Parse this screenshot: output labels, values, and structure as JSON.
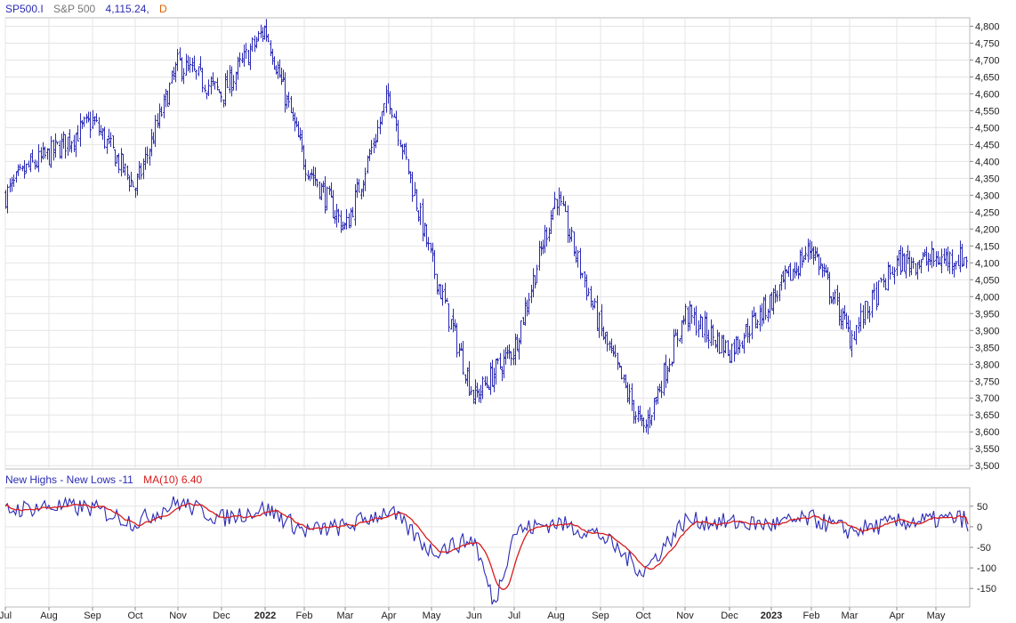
{
  "header": {
    "symbol": "SP500.I",
    "name": "S&P 500",
    "last": "4,115.24,",
    "period": "D"
  },
  "indicator": {
    "label": "New Highs - New Lows -11",
    "ma_label": "MA(10) 6.40"
  },
  "colors": {
    "price": "#2b2bb5",
    "indicator": "#2b2bb5",
    "ma": "#d81b1b",
    "grid": "#e4e4e4",
    "frame": "#b8b8b8",
    "header_name": "#777777",
    "header_period": "#e06000"
  },
  "chart_data": [
    {
      "type": "ohlc",
      "title": "SP500.I",
      "subtitle": "S&P 500",
      "x_tick_labels": [
        "Jul",
        "Aug",
        "Sep",
        "Oct",
        "Nov",
        "Dec",
        "2022",
        "Feb",
        "Mar",
        "Apr",
        "May",
        "Jun",
        "Jul",
        "Aug",
        "Sep",
        "Oct",
        "Nov",
        "Dec",
        "2023",
        "Feb",
        "Mar",
        "Apr",
        "May"
      ],
      "x_major_ticks": [
        "2022",
        "2023"
      ],
      "y_ticks": [
        "3,500",
        "3,550",
        "3,600",
        "3,650",
        "3,700",
        "3,750",
        "3,800",
        "3,850",
        "3,900",
        "3,950",
        "4,000",
        "4,050",
        "4,100",
        "4,150",
        "4,200",
        "4,250",
        "4,300",
        "4,350",
        "4,400",
        "4,450",
        "4,500",
        "4,550",
        "4,600",
        "4,650",
        "4,700",
        "4,750",
        "4,800"
      ],
      "y_major_ticks": [
        "3,600",
        "3,800",
        "4,000",
        "4,200",
        "4,400",
        "4,600",
        "4,800"
      ],
      "ylim": [
        3490,
        4825
      ],
      "last_close": 4115.24,
      "grid": true,
      "keypoints": [
        {
          "month": "Jul 2021",
          "close": 4300
        },
        {
          "month": "mid Jul 2021",
          "close": 4380
        },
        {
          "month": "Aug 2021",
          "close": 4420
        },
        {
          "month": "Sep 2021",
          "close": 4520
        },
        {
          "month": "Oct 2021",
          "close": 4320
        },
        {
          "month": "Nov 2021",
          "close": 4690
        },
        {
          "month": "Dec 2021",
          "close": 4600
        },
        {
          "month": "Jan 2022",
          "close": 4795
        },
        {
          "month": "Feb 2022",
          "close": 4400
        },
        {
          "month": "Mar 2022",
          "close": 4200
        },
        {
          "month": "Apr 2022",
          "close": 4600
        },
        {
          "month": "May 2022",
          "close": 4100
        },
        {
          "month": "Jun 2022",
          "close": 3700
        },
        {
          "month": "Jul 2022",
          "close": 3850
        },
        {
          "month": "Aug 2022",
          "close": 4300
        },
        {
          "month": "Sep 2022",
          "close": 3900
        },
        {
          "month": "Oct 2022",
          "close": 3600
        },
        {
          "month": "Nov 2022",
          "close": 3950
        },
        {
          "month": "Dec 2022",
          "close": 3840
        },
        {
          "month": "Jan 2023",
          "close": 3990
        },
        {
          "month": "Feb 2023",
          "close": 4150
        },
        {
          "month": "Mar 2023",
          "close": 3880
        },
        {
          "month": "Apr 2023",
          "close": 4100
        },
        {
          "month": "May 2023",
          "close": 4115
        }
      ]
    },
    {
      "type": "line",
      "title": "New Highs - New Lows",
      "series": [
        {
          "name": "New Highs - New Lows",
          "last": -11
        },
        {
          "name": "MA(10)",
          "last": 6.4
        }
      ],
      "y_ticks": [
        "50",
        "0",
        "-50",
        "-100",
        "-150"
      ],
      "ylim": [
        -195,
        95
      ],
      "grid": true,
      "keypoints": [
        {
          "month": "Jul 2021",
          "value": 40
        },
        {
          "month": "Aug 2021",
          "value": 50
        },
        {
          "month": "Sep 2021",
          "value": 45
        },
        {
          "month": "Oct 2021",
          "value": 10
        },
        {
          "month": "Nov 2021",
          "value": 60
        },
        {
          "month": "Dec 2021",
          "value": 20
        },
        {
          "month": "Jan 2022",
          "value": 45
        },
        {
          "month": "Feb 2022",
          "value": -10
        },
        {
          "month": "Mar 2022",
          "value": 0
        },
        {
          "month": "Apr 2022",
          "value": 40
        },
        {
          "month": "May 2022",
          "value": -60
        },
        {
          "month": "Jun 2022",
          "value": -30
        },
        {
          "month": "mid Jun 2022",
          "value": -190
        },
        {
          "month": "Jul 2022",
          "value": -10
        },
        {
          "month": "Aug 2022",
          "value": 10
        },
        {
          "month": "Sep 2022",
          "value": -20
        },
        {
          "month": "Oct 2022",
          "value": -110
        },
        {
          "month": "Nov 2022",
          "value": 15
        },
        {
          "month": "Dec 2022",
          "value": 10
        },
        {
          "month": "Jan 2023",
          "value": 5
        },
        {
          "month": "Feb 2023",
          "value": 20
        },
        {
          "month": "Mar 2023",
          "value": -10
        },
        {
          "month": "Apr 2023",
          "value": 10
        },
        {
          "month": "May 2023",
          "value": 20
        }
      ]
    }
  ]
}
